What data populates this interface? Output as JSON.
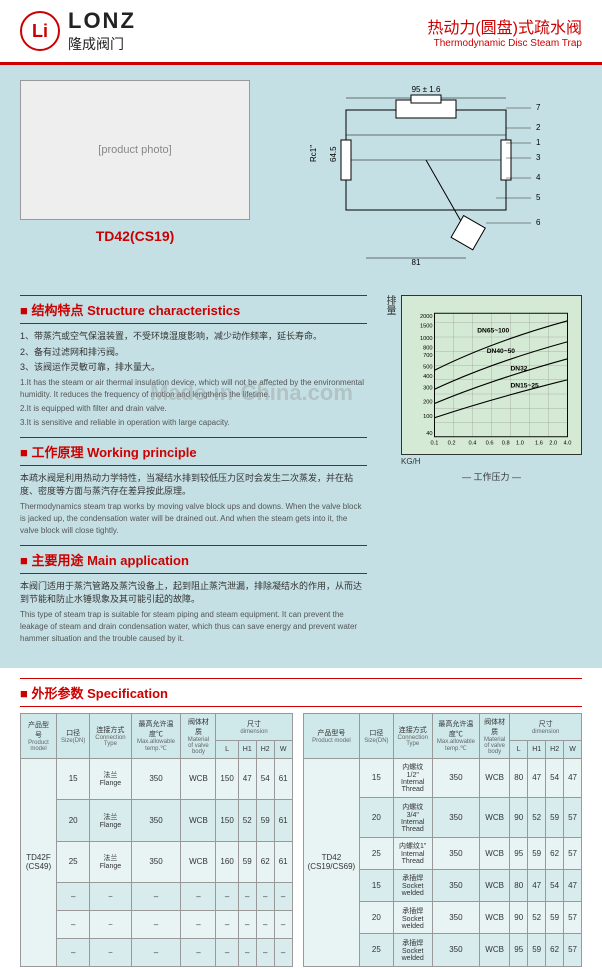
{
  "header": {
    "logo_mark": "Li",
    "logo_en": "LONZ",
    "logo_cn": "隆成阀门",
    "title_cn": "热动力(圆盘)式疏水阀",
    "title_en": "Thermodynamic Disc Steam Trap"
  },
  "product": {
    "model": "TD42(CS19)",
    "photo_placeholder": "[product photo]"
  },
  "drawing": {
    "top_dim": "95 ± 1.6",
    "leaders": [
      "7",
      "2",
      "1",
      "3",
      "4",
      "5",
      "6"
    ],
    "left_dim": "Rc1\"",
    "bottom_dim": "81",
    "mid_dim": "64.5"
  },
  "structure": {
    "heading": "结构特点 Structure characteristics",
    "items_cn": [
      "1、带蒸汽或空气保温装置，不受环境湿度影响，减少动作频率，延长寿命。",
      "2、备有过滤网和排污阀。",
      "3、该阀运作灵敏可靠，排水量大。"
    ],
    "items_en": [
      "1.It has the steam or air thermal insulation device, which will not be affected by the environmental humidity. It reduces the frequency of motion and lengthens the lifetime.",
      "2.It is equipped with filter and drain valve.",
      "3.It is sensitive and reliable in operation with large capacity."
    ]
  },
  "working": {
    "heading": "工作原理 Working principle",
    "text_cn": "本疏水阀是利用热动力学特性，当凝结水排到较低压力区时会发生二次蒸发，并在粘度、密度等方面与蒸汽存在差异按此原理。",
    "text_en": "Thermodynamics steam trap works by moving valve block ups and downs. When the valve block is jacked up, the condensation water will be drained out. And when the steam gets into it, the valve block will close tightly."
  },
  "application": {
    "heading": "主要用途 Main application",
    "text_cn": "本阀门适用于蒸汽管路及蒸汽设备上，起到阻止蒸汽泄漏，排除凝结水的作用，从而达到节能和防止水锤现象及其可能引起的故障。",
    "text_en": "This type of steam trap is suitable for steam piping and steam equipment. It can prevent the leakage of steam and drain condensation water, which thus can save energy and prevent water hammer situation and the trouble caused by it."
  },
  "chart": {
    "ylabel_cn": "排量",
    "yunit": "KG/H",
    "xlabel_cn": "工作压力",
    "xvalues": [
      "0.1",
      "0.2",
      "0.4",
      "0.6",
      "0.8",
      "1.0",
      "1.6",
      "2.0",
      "4.0"
    ],
    "yvalues": [
      "2000",
      "1500",
      "1000",
      "800",
      "700",
      "500",
      "400",
      "300",
      "200",
      "100",
      "40"
    ],
    "curves": [
      "DN65~100",
      "DN40~50",
      "DN32",
      "DN15~25"
    ],
    "bg_color": "#d5ead5",
    "grid_color": "#888888",
    "line_color": "#000000"
  },
  "spec": {
    "heading": "外形参数 Specification",
    "cols": [
      {
        "cn": "产品型号",
        "en": "Product model"
      },
      {
        "cn": "口径",
        "en": "Size(DN)"
      },
      {
        "cn": "连接方式",
        "en": "Connection Type"
      },
      {
        "cn": "最高允许温度℃",
        "en": "Max.allowable temp.℃"
      },
      {
        "cn": "阀体材质",
        "en": "Material of valve body"
      }
    ],
    "dim_header": {
      "cn": "尺寸",
      "en": "dimension"
    },
    "dim_cols": [
      "L",
      "H1",
      "H2",
      "W"
    ],
    "left": {
      "model": "TD42F\n(CS49)",
      "rows": [
        {
          "dn": "15",
          "conn": "法兰Flange",
          "temp": "350",
          "mat": "WCB",
          "L": "150",
          "H1": "47",
          "H2": "54",
          "W": "61"
        },
        {
          "dn": "20",
          "conn": "法兰Flange",
          "temp": "350",
          "mat": "WCB",
          "L": "150",
          "H1": "52",
          "H2": "59",
          "W": "61"
        },
        {
          "dn": "25",
          "conn": "法兰Flange",
          "temp": "350",
          "mat": "WCB",
          "L": "160",
          "H1": "59",
          "H2": "62",
          "W": "61"
        },
        {
          "dn": "–",
          "conn": "–",
          "temp": "–",
          "mat": "–",
          "L": "–",
          "H1": "–",
          "H2": "–",
          "W": "–"
        },
        {
          "dn": "–",
          "conn": "–",
          "temp": "–",
          "mat": "–",
          "L": "–",
          "H1": "–",
          "H2": "–",
          "W": "–"
        },
        {
          "dn": "–",
          "conn": "–",
          "temp": "–",
          "mat": "–",
          "L": "–",
          "H1": "–",
          "H2": "–",
          "W": "–"
        }
      ]
    },
    "right": {
      "model": "TD42\n(CS19/CS69)",
      "rows": [
        {
          "dn": "15",
          "conn": "内螺纹1/2\"\nInternal Thread",
          "temp": "350",
          "mat": "WCB",
          "L": "80",
          "H1": "47",
          "H2": "54",
          "W": "47"
        },
        {
          "dn": "20",
          "conn": "内螺纹3/4\"\nInternal Thread",
          "temp": "350",
          "mat": "WCB",
          "L": "90",
          "H1": "52",
          "H2": "59",
          "W": "57"
        },
        {
          "dn": "25",
          "conn": "内螺纹1\"\nInternal Thread",
          "temp": "350",
          "mat": "WCB",
          "L": "95",
          "H1": "59",
          "H2": "62",
          "W": "57"
        },
        {
          "dn": "15",
          "conn": "承插焊\nSocket welded",
          "temp": "350",
          "mat": "WCB",
          "L": "80",
          "H1": "47",
          "H2": "54",
          "W": "47"
        },
        {
          "dn": "20",
          "conn": "承插焊\nSocket welded",
          "temp": "350",
          "mat": "WCB",
          "L": "90",
          "H1": "52",
          "H2": "59",
          "W": "57"
        },
        {
          "dn": "25",
          "conn": "承插焊\nSocket welded",
          "temp": "350",
          "mat": "WCB",
          "L": "95",
          "H1": "59",
          "H2": "62",
          "W": "57"
        }
      ]
    }
  },
  "watermark": "Made-in-China.com"
}
